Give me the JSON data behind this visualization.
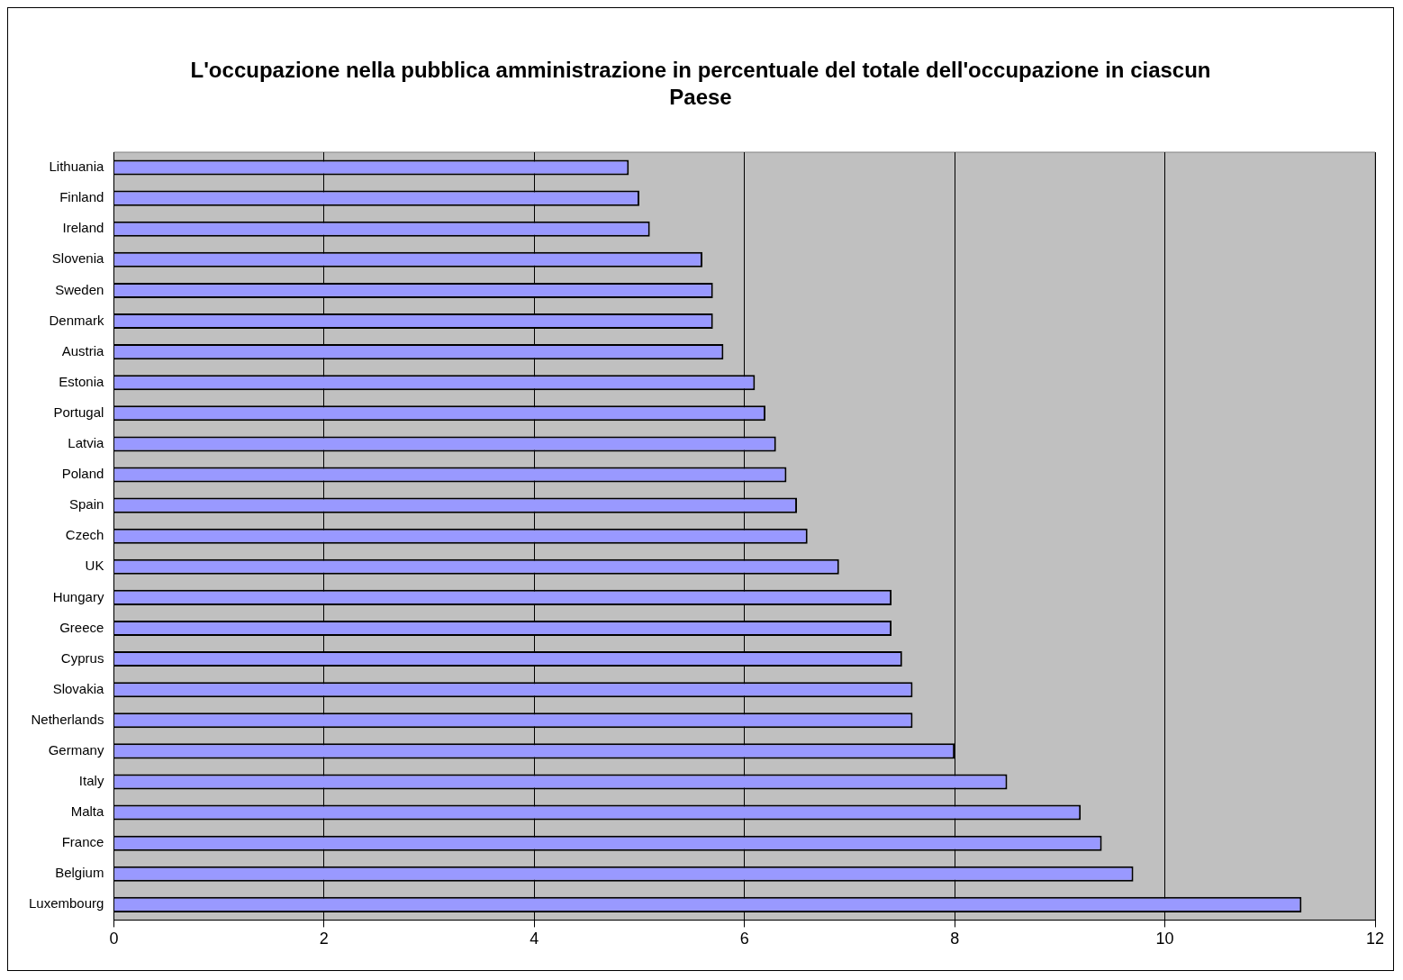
{
  "chart_data": {
    "type": "bar",
    "orientation": "horizontal",
    "title": "L'occupazione nella pubblica amministrazione in percentuale del totale dell'occupazione in ciascun Paese",
    "categories": [
      "Lithuania",
      "Finland",
      "Ireland",
      "Slovenia",
      "Sweden",
      "Denmark",
      "Austria",
      "Estonia",
      "Portugal",
      "Latvia",
      "Poland",
      "Spain",
      "Czech",
      "UK",
      "Hungary",
      "Greece",
      "Cyprus",
      "Slovakia",
      "Netherlands",
      "Germany",
      "Italy",
      "Malta",
      "France",
      "Belgium",
      "Luxembourg"
    ],
    "values": [
      4.9,
      5.0,
      5.1,
      5.6,
      5.7,
      5.7,
      5.8,
      6.1,
      6.2,
      6.3,
      6.4,
      6.5,
      6.6,
      6.9,
      7.4,
      7.4,
      7.5,
      7.6,
      7.6,
      8.0,
      8.5,
      9.2,
      9.4,
      9.7,
      11.3
    ],
    "color": "#9999ff",
    "xlim": [
      0,
      12
    ],
    "xticks": [
      0,
      2,
      4,
      6,
      8,
      10,
      12
    ],
    "grid": "x",
    "legend": false
  }
}
